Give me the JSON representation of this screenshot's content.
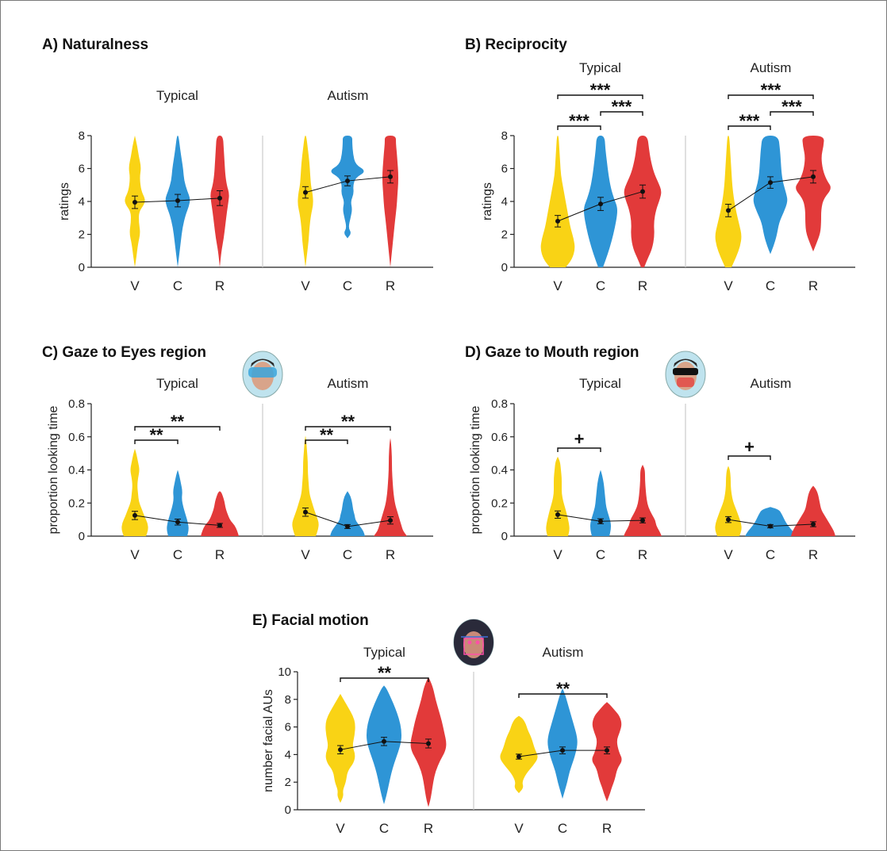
{
  "colors": {
    "V": "#F9D315",
    "C": "#2E95D6",
    "R": "#E23A3A",
    "line": "#111111",
    "divider": "#cccccc"
  },
  "chart_data": [
    {
      "type": "violin",
      "panel": "A) Naturalness",
      "ylabel": "ratings",
      "ylim": [
        0,
        8
      ],
      "yticks": [
        "0",
        "2",
        "4",
        "6",
        "8"
      ],
      "categories": [
        "V",
        "C",
        "R"
      ],
      "groups": [
        {
          "name": "Typical",
          "mean": [
            3.95,
            4.05,
            4.2
          ],
          "sem": [
            0.38,
            0.38,
            0.45
          ],
          "significance": []
        },
        {
          "name": "Autism",
          "mean": [
            4.55,
            5.25,
            5.5
          ],
          "sem": [
            0.35,
            0.3,
            0.38
          ],
          "significance": []
        }
      ]
    },
    {
      "type": "violin",
      "panel": "B) Reciprocity",
      "ylabel": "ratings",
      "ylim": [
        0,
        8
      ],
      "yticks": [
        "0",
        "2",
        "4",
        "6",
        "8"
      ],
      "categories": [
        "V",
        "C",
        "R"
      ],
      "groups": [
        {
          "name": "Typical",
          "mean": [
            2.8,
            3.85,
            4.6
          ],
          "sem": [
            0.35,
            0.4,
            0.4
          ],
          "significance": [
            {
              "from": "V",
              "to": "C",
              "label": "***"
            },
            {
              "from": "C",
              "to": "R",
              "label": "***"
            },
            {
              "from": "V",
              "to": "R",
              "label": "***"
            }
          ]
        },
        {
          "name": "Autism",
          "mean": [
            3.45,
            5.15,
            5.5
          ],
          "sem": [
            0.38,
            0.35,
            0.38
          ],
          "significance": [
            {
              "from": "V",
              "to": "C",
              "label": "***"
            },
            {
              "from": "C",
              "to": "R",
              "label": "***"
            },
            {
              "from": "V",
              "to": "R",
              "label": "***"
            }
          ]
        }
      ]
    },
    {
      "type": "violin",
      "panel": "C) Gaze to Eyes region",
      "ylabel": "proportion looking time",
      "ylim": [
        0,
        0.8
      ],
      "yticks": [
        "0",
        "0.2",
        "0.4",
        "0.6",
        "0.8"
      ],
      "categories": [
        "V",
        "C",
        "R"
      ],
      "icon": "eyes-region-face-icon",
      "groups": [
        {
          "name": "Typical",
          "mean": [
            0.125,
            0.085,
            0.065
          ],
          "sem": [
            0.025,
            0.018,
            0.012
          ],
          "significance": [
            {
              "from": "V",
              "to": "C",
              "label": "**"
            },
            {
              "from": "V",
              "to": "R",
              "label": "**"
            }
          ]
        },
        {
          "name": "Autism",
          "mean": [
            0.145,
            0.058,
            0.095
          ],
          "sem": [
            0.025,
            0.012,
            0.022
          ],
          "significance": [
            {
              "from": "V",
              "to": "C",
              "label": "**"
            },
            {
              "from": "V",
              "to": "R",
              "label": "**"
            }
          ]
        }
      ]
    },
    {
      "type": "violin",
      "panel": "D) Gaze to Mouth region",
      "ylabel": "proportion looking time",
      "ylim": [
        0,
        0.8
      ],
      "yticks": [
        "0",
        "0.2",
        "0.4",
        "0.6",
        "0.8"
      ],
      "categories": [
        "V",
        "C",
        "R"
      ],
      "icon": "mouth-region-face-icon",
      "groups": [
        {
          "name": "Typical",
          "mean": [
            0.13,
            0.09,
            0.095
          ],
          "sem": [
            0.022,
            0.015,
            0.015
          ],
          "significance": [
            {
              "from": "V",
              "to": "C",
              "label": "+"
            }
          ]
        },
        {
          "name": "Autism",
          "mean": [
            0.1,
            0.06,
            0.072
          ],
          "sem": [
            0.018,
            0.01,
            0.015
          ],
          "significance": [
            {
              "from": "V",
              "to": "C",
              "label": "+"
            }
          ]
        }
      ]
    },
    {
      "type": "violin",
      "panel": "E) Facial motion",
      "ylabel": "number facial AUs",
      "ylim": [
        0,
        10
      ],
      "yticks": [
        "0",
        "2",
        "4",
        "6",
        "8",
        "10"
      ],
      "categories": [
        "V",
        "C",
        "R"
      ],
      "icon": "facial-landmarks-face-icon",
      "groups": [
        {
          "name": "Typical",
          "mean": [
            4.35,
            4.95,
            4.8
          ],
          "sem": [
            0.3,
            0.3,
            0.32
          ],
          "significance": [
            {
              "from": "V",
              "to": "R",
              "label": "**"
            }
          ]
        },
        {
          "name": "Autism",
          "mean": [
            3.85,
            4.3,
            4.3
          ],
          "sem": [
            0.18,
            0.25,
            0.25
          ],
          "significance": [
            {
              "from": "V",
              "to": "R",
              "label": "**"
            }
          ]
        }
      ]
    }
  ]
}
